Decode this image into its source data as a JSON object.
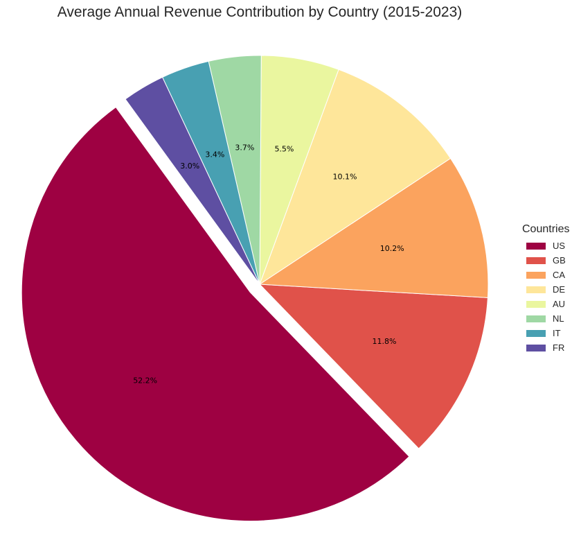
{
  "chart_data": {
    "type": "pie",
    "title": "Average Annual Revenue Contribution by Country (2015-2023)",
    "legend_title": "Countries",
    "legend_position": "right",
    "start_angle_deg": 126,
    "direction": "counterclockwise",
    "exploded": [
      "US"
    ],
    "slices": [
      {
        "label": "US",
        "value": 52.2,
        "pct_label": "52.2%",
        "color": "#9e0142"
      },
      {
        "label": "GB",
        "value": 11.8,
        "pct_label": "11.8%",
        "color": "#e0524a"
      },
      {
        "label": "CA",
        "value": 10.2,
        "pct_label": "10.2%",
        "color": "#fba35e"
      },
      {
        "label": "DE",
        "value": 10.1,
        "pct_label": "10.1%",
        "color": "#fee69a"
      },
      {
        "label": "AU",
        "value": 5.5,
        "pct_label": "5.5%",
        "color": "#eaf69f"
      },
      {
        "label": "NL",
        "value": 3.7,
        "pct_label": "3.7%",
        "color": "#9fd8a4"
      },
      {
        "label": "IT",
        "value": 3.4,
        "pct_label": "3.4%",
        "color": "#48a0b2"
      },
      {
        "label": "FR",
        "value": 3.0,
        "pct_label": "3.0%",
        "color": "#5e4fa2"
      }
    ]
  }
}
